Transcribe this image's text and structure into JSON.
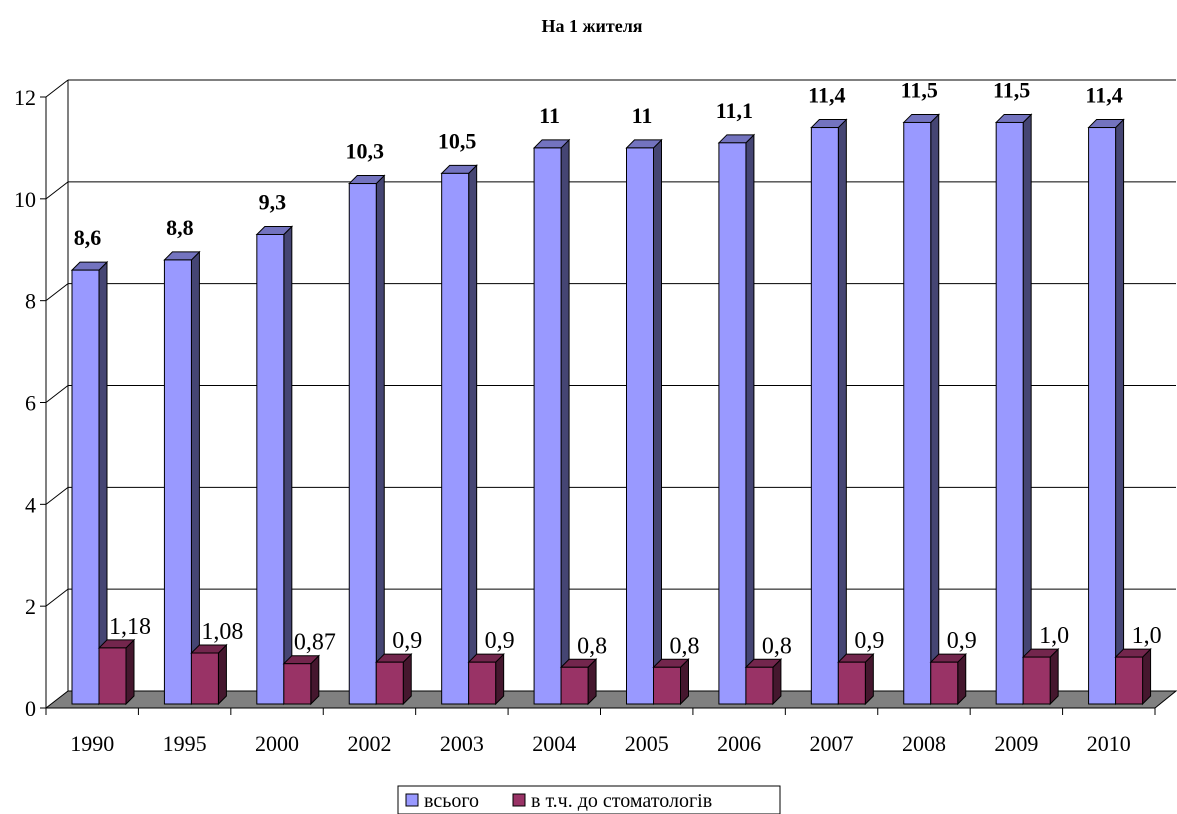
{
  "chart_data": {
    "type": "bar",
    "title": "На 1 жителя",
    "categories": [
      "1990",
      "1995",
      "2000",
      "2002",
      "2003",
      "2004",
      "2005",
      "2006",
      "2007",
      "2008",
      "2009",
      "2010"
    ],
    "series": [
      {
        "name": "всього",
        "values": [
          8.6,
          8.8,
          9.3,
          10.3,
          10.5,
          11,
          11,
          11.1,
          11.4,
          11.5,
          11.5,
          11.4
        ],
        "labels": [
          "8,6",
          "8,8",
          "9,3",
          "10,3",
          "10,5",
          "11",
          "11",
          "11,1",
          "11,4",
          "11,5",
          "11,5",
          "11,4"
        ],
        "color": "#9999ff"
      },
      {
        "name": "в т.ч. до стоматологів",
        "values": [
          1.18,
          1.08,
          0.87,
          0.9,
          0.9,
          0.8,
          0.8,
          0.8,
          0.9,
          0.9,
          1.0,
          1.0
        ],
        "labels": [
          "1,18",
          "1,08",
          "0,87",
          "0,9",
          "0,9",
          "0,8",
          "0,8",
          "0,8",
          "0,9",
          "0,9",
          "1,0",
          "1,0"
        ],
        "color": "#993366"
      }
    ],
    "yticks": [
      "0",
      "2",
      "4",
      "6",
      "8",
      "10",
      "12"
    ],
    "ylim": [
      0,
      12
    ],
    "grid": true,
    "legend_position": "bottom",
    "three_d": true
  }
}
